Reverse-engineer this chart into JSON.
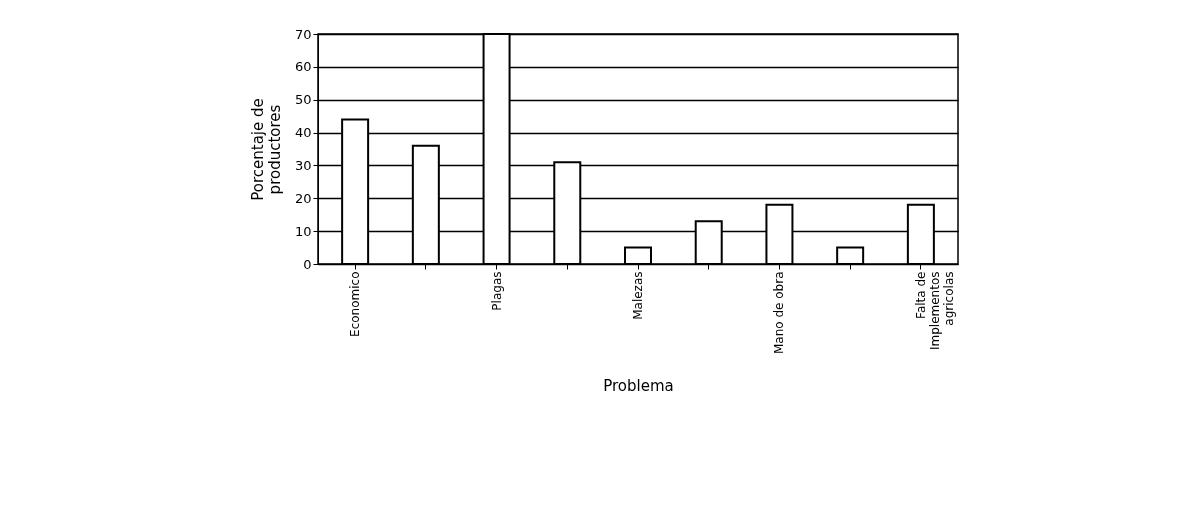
{
  "chart_data": {
    "type": "bar",
    "xlabel": "Problema",
    "ylabel": "Porcentaje de\nproductores",
    "categories": [
      "Economico",
      null,
      "Plagas",
      null,
      "Malezas",
      null,
      "Mano de obra",
      null,
      "Falta de\nImplementos\nagricolas"
    ],
    "values": [
      44,
      36,
      70,
      31,
      5,
      13,
      18,
      5,
      18
    ],
    "color": "#ffffff",
    "ylim": [
      0,
      70
    ],
    "yticks": [
      0,
      10,
      20,
      30,
      40,
      50,
      60,
      70
    ],
    "grid": "y"
  }
}
